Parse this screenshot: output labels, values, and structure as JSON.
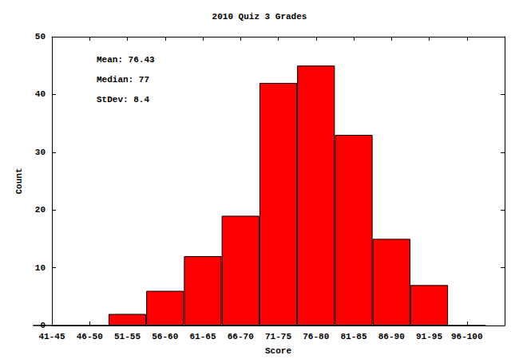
{
  "chart_data": {
    "type": "bar",
    "title": "2010 Quiz 3 Grades",
    "x_label": "Score",
    "y_label": "Count",
    "annotations": [
      "Mean: 76.43",
      "Median: 77",
      "StDev: 8.4"
    ],
    "categories": [
      "41-45",
      "46-50",
      "51-55",
      "56-60",
      "61-65",
      "66-70",
      "71-75",
      "76-80",
      "81-85",
      "86-90",
      "91-95",
      "96-100",
      null
    ],
    "values": [
      0,
      0,
      2,
      6,
      12,
      19,
      42,
      45,
      33,
      15,
      7,
      0,
      null
    ],
    "color": "#ff0000",
    "ylim": [
      0,
      50
    ],
    "yticks": [
      0,
      10,
      20,
      30,
      40,
      50
    ],
    "grid": false
  }
}
